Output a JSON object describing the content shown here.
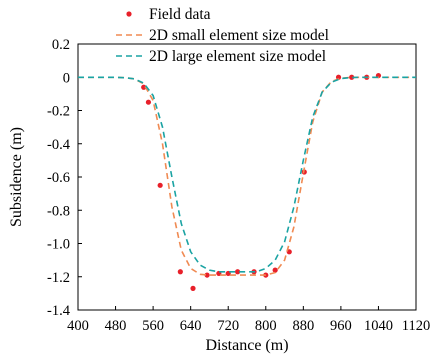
{
  "chart_data": {
    "type": "line",
    "title": "",
    "xlabel": "Distance (m)",
    "ylabel": "Subsidence (m)",
    "xlim": [
      400,
      1120
    ],
    "ylim": [
      -1.4,
      0.2
    ],
    "xticks": [
      400,
      480,
      560,
      640,
      720,
      800,
      880,
      960,
      1040,
      1120
    ],
    "xtick_labels": [
      "400",
      "480",
      "560",
      "640",
      "720",
      "800",
      "880",
      "960",
      "1040",
      "1120"
    ],
    "yticks": [
      0.2,
      0,
      -0.2,
      -0.4,
      -0.6,
      -0.8,
      -1.0,
      -1.2,
      -1.4
    ],
    "ytick_labels": [
      "0.2",
      "0",
      "-0.2",
      "-0.4",
      "-0.6",
      "-0.8",
      "-1.0",
      "-1.2",
      "-1.4"
    ],
    "grid": false,
    "legend_position": "top",
    "series": [
      {
        "name": "Field data",
        "kind": "scatter",
        "color": "#e8202a",
        "x": [
          540,
          550,
          575,
          618,
          645,
          675,
          700,
          720,
          740,
          775,
          800,
          820,
          850,
          882,
          955,
          983,
          1015,
          1040
        ],
        "y": [
          -0.06,
          -0.15,
          -0.65,
          -1.17,
          -1.27,
          -1.19,
          -1.18,
          -1.18,
          -1.17,
          -1.17,
          -1.19,
          -1.16,
          -1.05,
          -0.57,
          0.0,
          0.0,
          0.0,
          0.01
        ]
      },
      {
        "name": "2D small element size model",
        "kind": "line",
        "dash": "dashed",
        "color": "#f08a52",
        "x": [
          400,
          480,
          500,
          520,
          540,
          560,
          580,
          600,
          620,
          640,
          660,
          680,
          700,
          720,
          740,
          760,
          780,
          800,
          820,
          840,
          860,
          880,
          900,
          920,
          940,
          960,
          980,
          1000,
          1040,
          1120
        ],
        "y": [
          0.0,
          0.0,
          -0.003,
          -0.01,
          -0.04,
          -0.14,
          -0.4,
          -0.78,
          -1.04,
          -1.15,
          -1.185,
          -1.19,
          -1.19,
          -1.19,
          -1.19,
          -1.19,
          -1.19,
          -1.19,
          -1.175,
          -1.1,
          -0.9,
          -0.58,
          -0.27,
          -0.09,
          -0.025,
          -0.006,
          -0.001,
          0.0,
          0.0,
          0.0
        ]
      },
      {
        "name": "2D large element size model",
        "kind": "line",
        "dash": "dashed",
        "color": "#1aa3a3",
        "x": [
          400,
          480,
          500,
          520,
          540,
          560,
          580,
          600,
          620,
          640,
          660,
          680,
          700,
          720,
          740,
          760,
          780,
          800,
          820,
          840,
          860,
          880,
          900,
          920,
          940,
          960,
          980,
          1000,
          1040,
          1120
        ],
        "y": [
          0.0,
          0.0,
          -0.003,
          -0.01,
          -0.035,
          -0.11,
          -0.3,
          -0.6,
          -0.88,
          -1.05,
          -1.13,
          -1.16,
          -1.17,
          -1.17,
          -1.17,
          -1.17,
          -1.17,
          -1.15,
          -1.1,
          -0.99,
          -0.78,
          -0.5,
          -0.24,
          -0.09,
          -0.03,
          -0.008,
          -0.002,
          0.0,
          0.0,
          0.0
        ]
      }
    ]
  }
}
